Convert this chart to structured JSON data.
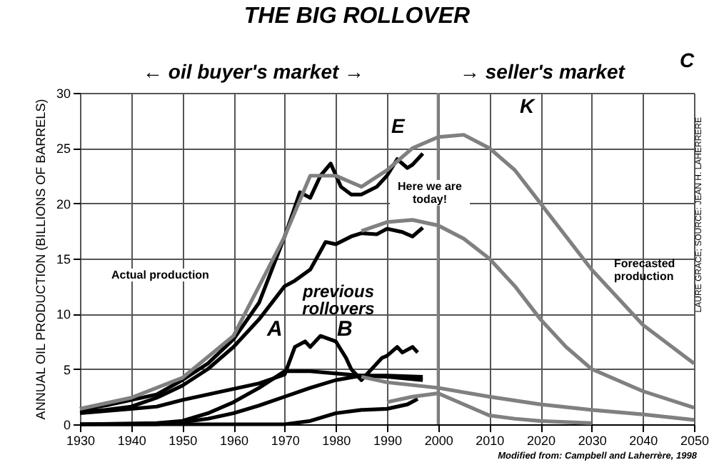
{
  "chart_data": {
    "type": "line",
    "title": "THE BIG ROLLOVER",
    "ylabel": "ANNUAL OIL PRODUCTION (BILLIONS OF BARRELS)",
    "xlim": [
      1930,
      2050
    ],
    "xticks": [
      1930,
      1940,
      1950,
      1960,
      1970,
      1980,
      1990,
      2000,
      2010,
      2020,
      2030,
      2040,
      2050
    ],
    "ylim": [
      0,
      30
    ],
    "yticks": [
      0,
      5,
      10,
      15,
      20,
      25,
      30
    ],
    "grid": true,
    "series": [
      {
        "color": "#000000",
        "x": [
          1930,
          1935,
          1940,
          1945,
          1950,
          1955,
          1960,
          1965,
          1970,
          1973,
          1975,
          1977,
          1979,
          1981,
          1983,
          1985,
          1988,
          1990,
          1992,
          1994,
          1995,
          1997
        ],
        "values": [
          1.4,
          1.7,
          2.2,
          2.7,
          4,
          5.5,
          7.7,
          11,
          17,
          21,
          20.5,
          22.5,
          23.6,
          21.5,
          20.8,
          20.8,
          21.5,
          22.5,
          24,
          23.2,
          23.5,
          24.5
        ]
      },
      {
        "color": "#000000",
        "x": [
          1930,
          1935,
          1940,
          1945,
          1950,
          1955,
          1960,
          1965,
          1970,
          1972,
          1975,
          1978,
          1980,
          1983,
          1985,
          1988,
          1990,
          1993,
          1995,
          1997
        ],
        "values": [
          1.2,
          1.3,
          1.6,
          2.4,
          3.5,
          5,
          7,
          9.5,
          12.5,
          13,
          14,
          16.5,
          16.3,
          17,
          17.3,
          17.2,
          17.7,
          17.4,
          17,
          17.8
        ]
      },
      {
        "color": "#000000",
        "x": [
          1930,
          1935,
          1940,
          1945,
          1950,
          1955,
          1960,
          1965,
          1970,
          1972,
          1974,
          1975,
          1977,
          1980,
          1982,
          1983,
          1985,
          1987,
          1989,
          1990,
          1992,
          1993,
          1995,
          1996
        ],
        "values": [
          1,
          1.2,
          1.4,
          1.6,
          2.2,
          2.7,
          3.2,
          3.7,
          4.5,
          7,
          7.5,
          7,
          8,
          7.5,
          6,
          5,
          4,
          5,
          6,
          6.2,
          7,
          6.5,
          7,
          6.5
        ]
      },
      {
        "color": "#000000",
        "x": [
          1930,
          1945,
          1950,
          1955,
          1960,
          1965,
          1970,
          1975,
          1980,
          1985,
          1990,
          1997
        ],
        "values": [
          0,
          0.1,
          0.3,
          1,
          2,
          3.3,
          4.8,
          4.8,
          4.6,
          4.4,
          4.3,
          4
        ]
      },
      {
        "color": "#000000",
        "x": [
          1930,
          1945,
          1950,
          1955,
          1960,
          1965,
          1970,
          1975,
          1980,
          1985,
          1990,
          1997
        ],
        "values": [
          0,
          0,
          0.2,
          0.5,
          1,
          1.7,
          2.5,
          3.3,
          4,
          4.4,
          4.4,
          4.3
        ]
      },
      {
        "color": "#000000",
        "x": [
          1930,
          1970,
          1975,
          1980,
          1985,
          1990,
          1994,
          1996
        ],
        "values": [
          0,
          0,
          0.3,
          1,
          1.3,
          1.4,
          1.8,
          2.3
        ]
      },
      {
        "color": "#808080",
        "x": [
          1930,
          1940,
          1950,
          1960,
          1970,
          1975,
          1980,
          1985,
          1990,
          1995,
          2000,
          2005,
          2010,
          2015,
          2020,
          2025,
          2030,
          2040,
          2050
        ],
        "values": [
          1.4,
          2.4,
          4.2,
          8,
          17,
          22.5,
          22.5,
          21.5,
          23,
          25,
          26,
          26.2,
          25,
          23,
          20,
          17,
          14,
          9,
          5.5
        ]
      },
      {
        "color": "#808080",
        "x": [
          1985,
          1990,
          1995,
          2000,
          2005,
          2010,
          2015,
          2020,
          2025,
          2030,
          2040,
          2050
        ],
        "values": [
          17.5,
          18.3,
          18.5,
          18,
          16.8,
          15,
          12.5,
          9.5,
          7,
          5,
          3,
          1.5
        ]
      },
      {
        "color": "#808080",
        "x": [
          1985,
          1990,
          2000,
          2010,
          2020,
          2030,
          2040,
          2050
        ],
        "values": [
          4.3,
          3.8,
          3.3,
          2.5,
          1.8,
          1.3,
          0.9,
          0.4
        ]
      },
      {
        "color": "#808080",
        "x": [
          1990,
          1995,
          2000,
          2005,
          2010,
          2015,
          2020,
          2030
        ],
        "values": [
          2,
          2.5,
          2.8,
          1.8,
          0.8,
          0.5,
          0.3,
          0.1
        ]
      }
    ],
    "ref_lines": [
      {
        "axis": "x",
        "value": 2000,
        "color": "#808080"
      }
    ],
    "annotations": [
      "← oil buyer's market →",
      "→ seller's market",
      "C",
      "LAURE GRACE; SOURCE: JEAN H. LAHERRERE",
      "Modified from: Campbell and Laherrère, 1998",
      "E",
      "K",
      "Here we are today!",
      "Actual production",
      "Forecasted production",
      "previous rollovers",
      "A",
      "B"
    ]
  }
}
